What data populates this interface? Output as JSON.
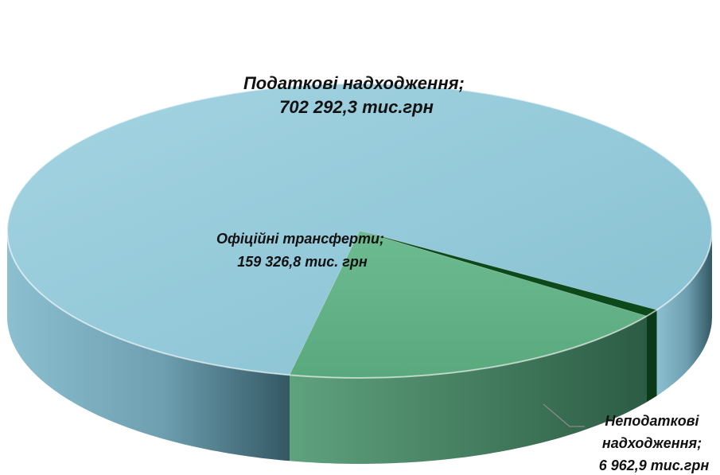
{
  "chart_data": {
    "type": "pie",
    "style": "3d",
    "categories": [
      "Податкові надходження",
      "Офіційні трансферти",
      "Неподаткові надходження"
    ],
    "values": [
      702292.3,
      159326.8,
      6962.9
    ],
    "unit": "тис.грн",
    "colors": [
      "#92c9d9",
      "#63b086",
      "#0c4a1c"
    ],
    "legend": "none"
  },
  "labels": {
    "tax": {
      "line1": "Податкові  надходження;",
      "line2": "702 292,3 тис.грн"
    },
    "transfers": {
      "line1": "Офіційні трансферти;",
      "line2": "159 326,8 тис. грн"
    },
    "nontax": {
      "line1": "Неподаткові",
      "line2": "надходження;",
      "line3": "6 962,9 тис.грн"
    }
  }
}
